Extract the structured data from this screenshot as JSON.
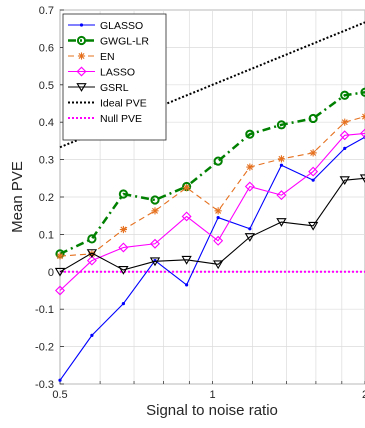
{
  "chart_data": {
    "type": "line",
    "xlabel": "Signal to noise ratio",
    "ylabel": "Mean PVE",
    "xscale": "log",
    "xlim": [
      0.5,
      2
    ],
    "ylim": [
      -0.3,
      0.7
    ],
    "x_tick_labels": [
      "0.5",
      "1",
      "2"
    ],
    "y_tick_labels": [
      "0.7",
      "0.6",
      "0.5",
      "0.4",
      "0.3",
      "0.2",
      "0.1",
      "0",
      "-0.1",
      "-0.2",
      "-0.3"
    ],
    "y_ticks": [
      0.7,
      0.6,
      0.5,
      0.4,
      0.3,
      0.2,
      0.1,
      0,
      -0.1,
      -0.2,
      -0.3
    ],
    "grid": true,
    "legend_position": "top-left",
    "x": [
      0.5,
      0.578,
      0.667,
      0.77,
      0.889,
      1.026,
      1.185,
      1.368,
      1.58,
      1.824,
      2.0
    ],
    "series": [
      {
        "name": "GLASSO",
        "color": "#0000ff",
        "dash": "",
        "marker": "dot",
        "values": [
          -0.29,
          -0.17,
          -0.085,
          0.03,
          -0.035,
          0.145,
          0.115,
          0.285,
          0.245,
          0.33,
          0.36
        ]
      },
      {
        "name": "GWGL-LR",
        "color": "#008000",
        "dash": "8,4,2,4",
        "marker": "circle",
        "width": 2.5,
        "values": [
          0.048,
          0.088,
          0.208,
          0.192,
          0.228,
          0.296,
          0.368,
          0.393,
          0.41,
          0.472,
          0.48
        ]
      },
      {
        "name": "EN",
        "color": "#e5701e",
        "dash": "6,4",
        "marker": "star",
        "values": [
          0.042,
          0.048,
          0.113,
          0.163,
          0.225,
          0.163,
          0.28,
          0.302,
          0.318,
          0.4,
          0.415
        ]
      },
      {
        "name": "LASSO",
        "color": "#ff00ff",
        "dash": "",
        "marker": "diamond",
        "values": [
          -0.05,
          0.03,
          0.065,
          0.075,
          0.148,
          0.083,
          0.228,
          0.205,
          0.268,
          0.365,
          0.37
        ]
      },
      {
        "name": "GSRL",
        "color": "#000000",
        "dash": "",
        "marker": "triangle",
        "values": [
          0.0,
          0.05,
          0.005,
          0.028,
          0.032,
          0.02,
          0.093,
          0.133,
          0.123,
          0.245,
          0.25
        ]
      }
    ],
    "reference_lines": [
      {
        "name": "Ideal PVE",
        "color": "#000000",
        "dash": "2,2",
        "x": [
          0.5,
          2.0
        ],
        "values": [
          0.333,
          0.667
        ]
      },
      {
        "name": "Null PVE",
        "color": "#ff00ff",
        "dash": "2,2",
        "x": [
          0.5,
          2.0
        ],
        "values": [
          0.0,
          0.0
        ]
      }
    ]
  }
}
